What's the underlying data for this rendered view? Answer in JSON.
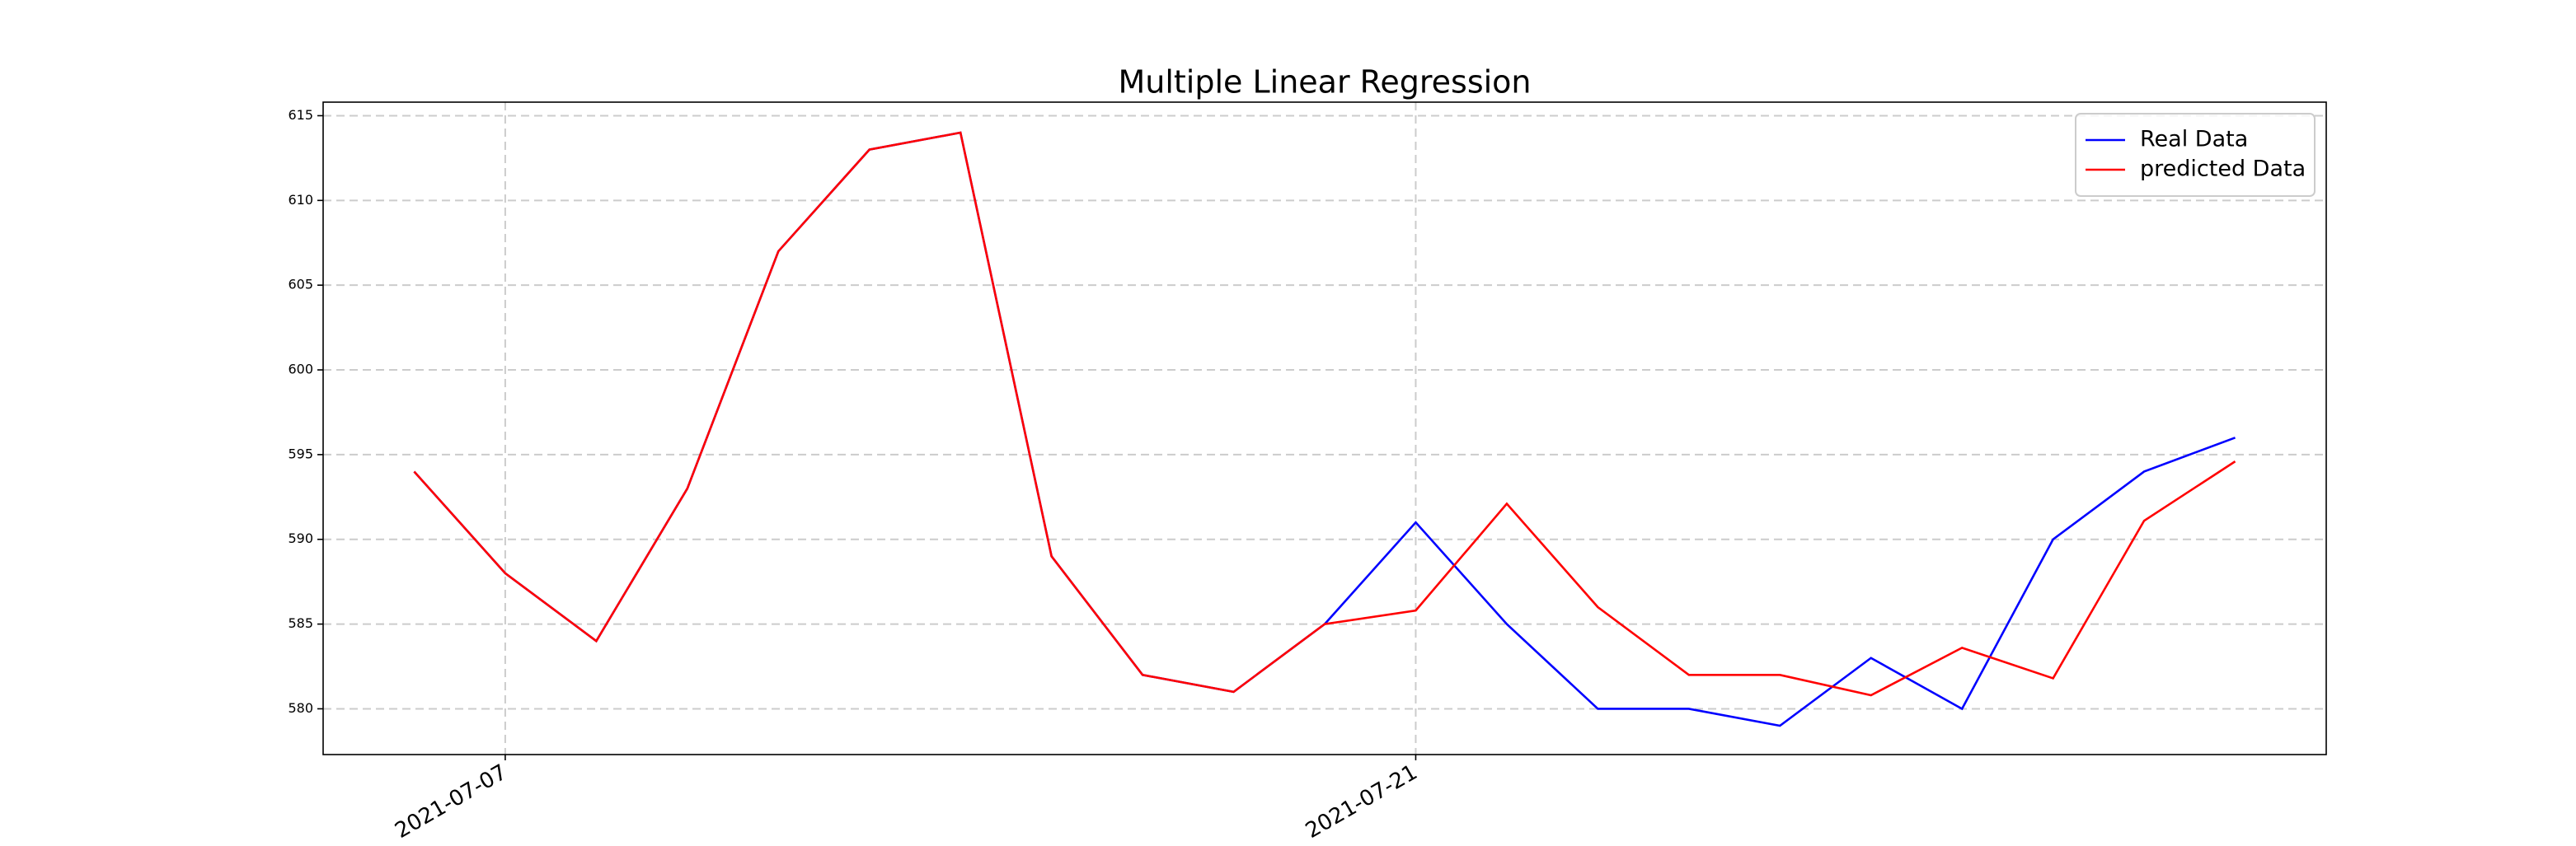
{
  "chart_data": {
    "type": "line",
    "title": "Multiple Linear Regression",
    "categories": [
      null,
      "2021-07-07",
      null,
      null,
      null,
      null,
      null,
      null,
      null,
      null,
      null,
      "2021-07-21",
      null,
      null,
      null,
      null,
      null,
      null,
      null,
      null,
      null
    ],
    "xlim": [
      -1,
      21
    ],
    "series": [
      {
        "name": "Real Data",
        "color": "#0000ff",
        "values": [
          594,
          588,
          584,
          593,
          607,
          613,
          614,
          589,
          582,
          581,
          585,
          591,
          585,
          580,
          580,
          579,
          583,
          580,
          590,
          594,
          596
        ]
      },
      {
        "name": "predicted Data",
        "color": "#ff0000",
        "values": [
          594,
          588,
          584,
          593,
          607,
          613,
          614,
          589,
          582,
          581,
          585,
          585.8,
          592.1,
          586,
          582,
          582,
          580.8,
          583.6,
          581.8,
          591.1,
          594.6
        ]
      }
    ],
    "ylim": [
      577.3,
      615.8
    ],
    "yticks": [
      580,
      585,
      590,
      595,
      600,
      605,
      610,
      615
    ],
    "grid": true,
    "legend": "upper right"
  }
}
